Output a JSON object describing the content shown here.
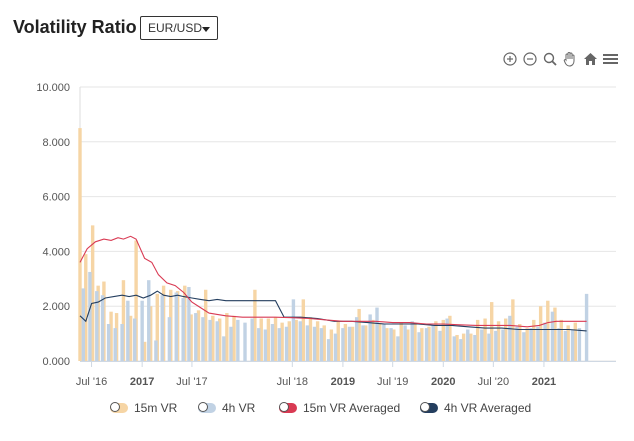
{
  "header": {
    "title": "Volatility Ratio",
    "pair": "EUR/USD"
  },
  "toolbar": {
    "icons": [
      "zoom-in-icon",
      "zoom-out-icon",
      "magnify-icon",
      "pan-hand-icon",
      "home-icon",
      "menu-icon"
    ]
  },
  "colors": {
    "vr15": "#f6d5a5",
    "vr4h": "#c1d2e4",
    "avg15": "#d93a53",
    "avg4h": "#243e5f",
    "grid": "#e6e6e6"
  },
  "legend": {
    "vr15": "15m VR",
    "vr4h": "4h VR",
    "avg15": "15m VR Averaged",
    "avg4h": "4h VR Averaged"
  },
  "chart_data": {
    "type": "bar",
    "ylim": [
      0,
      10
    ],
    "yticks": [
      "10.000",
      "8.000",
      "6.000",
      "4.000",
      "2.000",
      "0.000"
    ],
    "xlim": [
      "2016-05-20",
      "2021-09-20"
    ],
    "xticks": [
      {
        "label": "Jul '16",
        "date": "2016-07-01",
        "bold": false
      },
      {
        "label": "2017",
        "date": "2017-01-01",
        "bold": true
      },
      {
        "label": "Jul '17",
        "date": "2017-07-01",
        "bold": false
      },
      {
        "label": "Jul '18",
        "date": "2018-07-01",
        "bold": false
      },
      {
        "label": "2019",
        "date": "2019-01-01",
        "bold": true
      },
      {
        "label": "Jul '19",
        "date": "2019-07-01",
        "bold": false
      },
      {
        "label": "2020",
        "date": "2020-01-01",
        "bold": true
      },
      {
        "label": "Jul '20",
        "date": "2020-07-01",
        "bold": false
      },
      {
        "label": "2021",
        "date": "2021-01-01",
        "bold": true
      }
    ],
    "series": [
      {
        "name": "15m VR",
        "kind": "bar",
        "points": [
          [
            "2016-05-20",
            8.5
          ],
          [
            "2016-06-10",
            3.9
          ],
          [
            "2016-07-05",
            4.95
          ],
          [
            "2016-07-25",
            2.75
          ],
          [
            "2016-08-15",
            2.9
          ],
          [
            "2016-09-10",
            1.8
          ],
          [
            "2016-09-30",
            1.75
          ],
          [
            "2016-10-25",
            2.95
          ],
          [
            "2016-11-20",
            1.65
          ],
          [
            "2016-12-10",
            4.4
          ],
          [
            "2017-01-10",
            0.7
          ],
          [
            "2017-02-01",
            2.0
          ],
          [
            "2017-02-25",
            2.45
          ],
          [
            "2017-03-20",
            2.75
          ],
          [
            "2017-04-15",
            2.6
          ],
          [
            "2017-05-10",
            2.55
          ],
          [
            "2017-06-05",
            2.75
          ],
          [
            "2017-06-28",
            1.7
          ],
          [
            "2017-07-25",
            1.85
          ],
          [
            "2017-08-20",
            2.6
          ],
          [
            "2017-09-15",
            1.65
          ],
          [
            "2017-10-10",
            1.55
          ],
          [
            "2017-11-05",
            1.75
          ],
          [
            "2017-12-01",
            1.65
          ],
          [
            "2018-02-15",
            2.6
          ],
          [
            "2018-03-10",
            1.55
          ],
          [
            "2018-04-05",
            1.55
          ],
          [
            "2018-05-01",
            1.6
          ],
          [
            "2018-05-25",
            1.4
          ],
          [
            "2018-06-20",
            1.45
          ],
          [
            "2018-07-15",
            1.5
          ],
          [
            "2018-08-10",
            2.25
          ],
          [
            "2018-09-05",
            1.6
          ],
          [
            "2018-10-01",
            1.45
          ],
          [
            "2018-10-25",
            1.3
          ],
          [
            "2018-11-20",
            1.15
          ],
          [
            "2018-12-15",
            1.45
          ],
          [
            "2019-01-10",
            1.35
          ],
          [
            "2019-02-05",
            1.25
          ],
          [
            "2019-03-01",
            1.9
          ],
          [
            "2019-03-25",
            1.3
          ],
          [
            "2019-04-20",
            1.5
          ],
          [
            "2019-05-15",
            1.35
          ],
          [
            "2019-06-10",
            1.2
          ],
          [
            "2019-07-05",
            1.15
          ],
          [
            "2019-08-01",
            1.4
          ],
          [
            "2019-08-25",
            1.15
          ],
          [
            "2019-09-20",
            1.35
          ],
          [
            "2019-10-15",
            1.2
          ],
          [
            "2019-11-10",
            1.25
          ],
          [
            "2019-12-05",
            1.45
          ],
          [
            "2020-01-01",
            1.5
          ],
          [
            "2020-01-25",
            1.65
          ],
          [
            "2020-02-20",
            0.95
          ],
          [
            "2020-03-15",
            1.0
          ],
          [
            "2020-04-10",
            1.0
          ],
          [
            "2020-05-05",
            1.5
          ],
          [
            "2020-06-01",
            1.55
          ],
          [
            "2020-06-25",
            2.15
          ],
          [
            "2020-07-20",
            1.45
          ],
          [
            "2020-08-15",
            1.55
          ],
          [
            "2020-09-10",
            2.25
          ],
          [
            "2020-10-05",
            1.35
          ],
          [
            "2020-11-01",
            1.2
          ],
          [
            "2020-11-25",
            1.5
          ],
          [
            "2020-12-20",
            2.0
          ],
          [
            "2021-01-15",
            2.2
          ],
          [
            "2021-02-10",
            1.95
          ],
          [
            "2021-03-05",
            1.5
          ],
          [
            "2021-03-30",
            1.3
          ],
          [
            "2021-04-25",
            1.4
          ]
        ]
      },
      {
        "name": "4h VR",
        "kind": "bar",
        "points": [
          [
            "2016-06-01",
            2.65
          ],
          [
            "2016-06-25",
            3.25
          ],
          [
            "2016-07-20",
            2.55
          ],
          [
            "2016-08-10",
            2.4
          ],
          [
            "2016-09-01",
            1.35
          ],
          [
            "2016-09-25",
            1.2
          ],
          [
            "2016-10-20",
            1.35
          ],
          [
            "2016-11-10",
            2.2
          ],
          [
            "2016-12-05",
            1.55
          ],
          [
            "2017-01-01",
            2.2
          ],
          [
            "2017-01-25",
            2.95
          ],
          [
            "2017-02-20",
            0.75
          ],
          [
            "2017-03-15",
            2.4
          ],
          [
            "2017-04-10",
            1.6
          ],
          [
            "2017-05-05",
            2.5
          ],
          [
            "2017-05-30",
            2.3
          ],
          [
            "2017-06-20",
            2.7
          ],
          [
            "2017-07-15",
            1.75
          ],
          [
            "2017-08-10",
            1.6
          ],
          [
            "2017-09-05",
            1.5
          ],
          [
            "2017-10-01",
            1.45
          ],
          [
            "2017-10-25",
            0.9
          ],
          [
            "2017-11-20",
            1.25
          ],
          [
            "2017-12-15",
            1.5
          ],
          [
            "2018-01-10",
            1.4
          ],
          [
            "2018-02-05",
            1.55
          ],
          [
            "2018-03-01",
            1.2
          ],
          [
            "2018-03-25",
            1.15
          ],
          [
            "2018-04-20",
            1.35
          ],
          [
            "2018-05-15",
            1.2
          ],
          [
            "2018-06-10",
            1.25
          ],
          [
            "2018-07-05",
            2.25
          ],
          [
            "2018-07-30",
            1.45
          ],
          [
            "2018-08-25",
            1.3
          ],
          [
            "2018-09-20",
            1.25
          ],
          [
            "2018-10-15",
            1.2
          ],
          [
            "2018-11-10",
            0.8
          ],
          [
            "2018-12-05",
            1.0
          ],
          [
            "2019-01-01",
            1.2
          ],
          [
            "2019-01-25",
            1.25
          ],
          [
            "2019-02-20",
            1.6
          ],
          [
            "2019-03-15",
            1.3
          ],
          [
            "2019-04-10",
            1.7
          ],
          [
            "2019-05-05",
            1.95
          ],
          [
            "2019-05-30",
            1.35
          ],
          [
            "2019-06-25",
            1.2
          ],
          [
            "2019-07-20",
            0.9
          ],
          [
            "2019-08-15",
            1.3
          ],
          [
            "2019-09-10",
            1.45
          ],
          [
            "2019-10-05",
            1.05
          ],
          [
            "2019-11-01",
            1.2
          ],
          [
            "2019-11-25",
            1.3
          ],
          [
            "2019-12-20",
            1.1
          ],
          [
            "2020-01-15",
            1.55
          ],
          [
            "2020-02-10",
            0.9
          ],
          [
            "2020-03-05",
            0.8
          ],
          [
            "2020-03-30",
            1.15
          ],
          [
            "2020-04-25",
            0.95
          ],
          [
            "2020-05-20",
            1.15
          ],
          [
            "2020-06-15",
            1.0
          ],
          [
            "2020-07-10",
            1.1
          ],
          [
            "2020-08-05",
            1.15
          ],
          [
            "2020-08-30",
            1.65
          ],
          [
            "2020-09-25",
            1.25
          ],
          [
            "2020-10-20",
            1.05
          ],
          [
            "2020-11-15",
            1.2
          ],
          [
            "2020-12-10",
            1.25
          ],
          [
            "2021-01-05",
            1.4
          ],
          [
            "2021-02-01",
            1.8
          ],
          [
            "2021-02-25",
            1.2
          ],
          [
            "2021-03-20",
            1.1
          ],
          [
            "2021-04-15",
            1.15
          ],
          [
            "2021-05-10",
            1.2
          ],
          [
            "2021-06-05",
            2.45
          ]
        ]
      },
      {
        "name": "15m VR Averaged",
        "kind": "line",
        "points": [
          [
            "2016-05-20",
            3.6
          ],
          [
            "2016-06-15",
            4.1
          ],
          [
            "2016-07-15",
            4.35
          ],
          [
            "2016-08-15",
            4.45
          ],
          [
            "2016-09-10",
            4.4
          ],
          [
            "2016-10-05",
            4.5
          ],
          [
            "2016-10-25",
            4.45
          ],
          [
            "2016-11-20",
            4.55
          ],
          [
            "2016-12-10",
            4.45
          ],
          [
            "2017-01-10",
            3.75
          ],
          [
            "2017-02-05",
            3.6
          ],
          [
            "2017-03-01",
            3.15
          ],
          [
            "2017-04-01",
            2.85
          ],
          [
            "2017-05-01",
            2.75
          ],
          [
            "2017-06-01",
            2.5
          ],
          [
            "2017-07-01",
            2.15
          ],
          [
            "2017-08-01",
            1.95
          ],
          [
            "2017-09-01",
            1.75
          ],
          [
            "2017-10-01",
            1.7
          ],
          [
            "2017-11-01",
            1.65
          ],
          [
            "2018-01-01",
            1.6
          ],
          [
            "2018-03-01",
            1.6
          ],
          [
            "2018-05-01",
            1.6
          ],
          [
            "2018-07-01",
            1.58
          ],
          [
            "2018-09-01",
            1.55
          ],
          [
            "2018-11-01",
            1.5
          ],
          [
            "2019-01-01",
            1.45
          ],
          [
            "2019-03-01",
            1.45
          ],
          [
            "2019-05-01",
            1.45
          ],
          [
            "2019-07-01",
            1.4
          ],
          [
            "2019-09-01",
            1.4
          ],
          [
            "2019-11-01",
            1.35
          ],
          [
            "2020-01-01",
            1.35
          ],
          [
            "2020-03-01",
            1.32
          ],
          [
            "2020-05-01",
            1.3
          ],
          [
            "2020-07-01",
            1.3
          ],
          [
            "2020-09-01",
            1.3
          ],
          [
            "2020-11-01",
            1.25
          ],
          [
            "2020-12-15",
            1.3
          ],
          [
            "2021-01-15",
            1.4
          ],
          [
            "2021-02-15",
            1.45
          ],
          [
            "2021-04-01",
            1.45
          ],
          [
            "2021-06-05",
            1.45
          ]
        ]
      },
      {
        "name": "4h VR Averaged",
        "kind": "line",
        "points": [
          [
            "2016-05-20",
            1.65
          ],
          [
            "2016-06-10",
            1.45
          ],
          [
            "2016-07-01",
            2.1
          ],
          [
            "2016-07-25",
            2.15
          ],
          [
            "2016-08-20",
            2.3
          ],
          [
            "2016-09-20",
            2.35
          ],
          [
            "2016-10-20",
            2.4
          ],
          [
            "2016-11-15",
            2.35
          ],
          [
            "2016-12-10",
            2.4
          ],
          [
            "2017-01-05",
            2.3
          ],
          [
            "2017-02-01",
            2.4
          ],
          [
            "2017-02-25",
            2.55
          ],
          [
            "2017-03-20",
            2.4
          ],
          [
            "2017-04-15",
            2.35
          ],
          [
            "2017-05-10",
            2.4
          ],
          [
            "2017-06-01",
            2.35
          ],
          [
            "2017-07-01",
            2.3
          ],
          [
            "2017-08-01",
            2.25
          ],
          [
            "2017-09-01",
            2.2
          ],
          [
            "2017-10-01",
            2.25
          ],
          [
            "2017-11-01",
            2.2
          ],
          [
            "2017-12-01",
            2.2
          ],
          [
            "2018-01-01",
            2.2
          ],
          [
            "2018-02-01",
            2.2
          ],
          [
            "2018-03-01",
            2.2
          ],
          [
            "2018-04-01",
            2.2
          ],
          [
            "2018-05-01",
            2.2
          ],
          [
            "2018-06-01",
            1.6
          ],
          [
            "2018-08-01",
            1.6
          ],
          [
            "2018-10-01",
            1.55
          ],
          [
            "2018-12-01",
            1.45
          ],
          [
            "2019-02-01",
            1.45
          ],
          [
            "2019-04-01",
            1.4
          ],
          [
            "2019-06-01",
            1.35
          ],
          [
            "2019-08-01",
            1.35
          ],
          [
            "2019-10-01",
            1.35
          ],
          [
            "2019-12-01",
            1.3
          ],
          [
            "2020-02-01",
            1.3
          ],
          [
            "2020-04-01",
            1.25
          ],
          [
            "2020-06-01",
            1.2
          ],
          [
            "2020-08-01",
            1.2
          ],
          [
            "2020-10-01",
            1.15
          ],
          [
            "2020-12-01",
            1.15
          ],
          [
            "2021-02-01",
            1.15
          ],
          [
            "2021-04-01",
            1.15
          ],
          [
            "2021-06-05",
            1.1
          ]
        ]
      }
    ]
  }
}
